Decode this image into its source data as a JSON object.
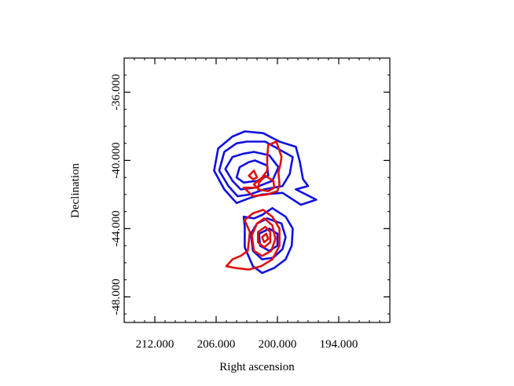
{
  "chart_data": {
    "type": "contour",
    "title": "",
    "xlabel": "Right ascension",
    "ylabel": "Declination",
    "xlim": [
      215.0,
      189.0
    ],
    "ylim": [
      -49.5,
      -34.0
    ],
    "xticks": [
      {
        "value": 212.0,
        "label": "212.000"
      },
      {
        "value": 206.0,
        "label": "206.000"
      },
      {
        "value": 200.0,
        "label": "200.000"
      },
      {
        "value": 194.0,
        "label": "194.000"
      }
    ],
    "yticks": [
      {
        "value": -36.0,
        "label": "-36.000"
      },
      {
        "value": -40.0,
        "label": "-40.000"
      },
      {
        "value": -44.0,
        "label": "-44.000"
      },
      {
        "value": -48.0,
        "label": "-48.000"
      }
    ],
    "grid": false,
    "series": [
      {
        "color": "#1010e0",
        "contours": [
          [
            [
              203.2,
              -38.3
            ],
            [
              201.4,
              -38.4
            ],
            [
              199.8,
              -38.9
            ],
            [
              198.2,
              -39.2
            ],
            [
              197.8,
              -40.1
            ],
            [
              197.5,
              -41.1
            ],
            [
              197.0,
              -41.5
            ],
            [
              198.2,
              -41.7
            ],
            [
              196.2,
              -42.3
            ],
            [
              197.7,
              -42.6
            ],
            [
              199.5,
              -41.9
            ],
            [
              201.5,
              -42.0
            ],
            [
              202.7,
              -42.2
            ],
            [
              204.0,
              -42.5
            ],
            [
              205.2,
              -41.7
            ],
            [
              206.2,
              -40.6
            ],
            [
              205.8,
              -39.3
            ],
            [
              204.4,
              -38.6
            ],
            [
              203.2,
              -38.3
            ]
          ],
          [
            [
              203.0,
              -38.9
            ],
            [
              201.2,
              -38.9
            ],
            [
              199.7,
              -39.4
            ],
            [
              198.5,
              -39.8
            ],
            [
              198.8,
              -40.8
            ],
            [
              199.5,
              -41.5
            ],
            [
              201.3,
              -41.7
            ],
            [
              202.7,
              -42.0
            ],
            [
              203.9,
              -42.1
            ],
            [
              204.8,
              -41.5
            ],
            [
              205.7,
              -40.6
            ],
            [
              205.2,
              -39.5
            ],
            [
              204.0,
              -39.0
            ],
            [
              203.0,
              -38.9
            ]
          ],
          [
            [
              202.3,
              -39.5
            ],
            [
              200.8,
              -39.7
            ],
            [
              199.9,
              -40.4
            ],
            [
              200.5,
              -41.2
            ],
            [
              202.2,
              -41.6
            ],
            [
              203.6,
              -41.7
            ],
            [
              204.4,
              -41.2
            ],
            [
              205.1,
              -40.5
            ],
            [
              204.4,
              -39.8
            ],
            [
              203.3,
              -39.6
            ],
            [
              202.3,
              -39.5
            ]
          ],
          [
            [
              202.2,
              -40.0
            ],
            [
              201.0,
              -40.3
            ],
            [
              200.9,
              -40.9
            ],
            [
              202.0,
              -41.2
            ],
            [
              203.3,
              -41.3
            ],
            [
              204.0,
              -41.0
            ],
            [
              203.7,
              -40.4
            ],
            [
              202.8,
              -40.1
            ],
            [
              202.2,
              -40.0
            ]
          ],
          [
            [
              200.5,
              -42.8
            ],
            [
              199.2,
              -43.3
            ],
            [
              198.5,
              -44.0
            ],
            [
              198.6,
              -45.0
            ],
            [
              199.2,
              -45.8
            ],
            [
              200.3,
              -46.3
            ],
            [
              201.5,
              -46.6
            ],
            [
              202.4,
              -46.2
            ],
            [
              203.2,
              -45.1
            ],
            [
              203.2,
              -43.9
            ],
            [
              203.3,
              -43.3
            ],
            [
              202.3,
              -43.4
            ],
            [
              201.5,
              -43.2
            ],
            [
              200.5,
              -42.8
            ]
          ],
          [
            [
              201.0,
              -43.4
            ],
            [
              199.6,
              -43.7
            ],
            [
              199.2,
              -44.5
            ],
            [
              199.5,
              -45.2
            ],
            [
              200.4,
              -45.7
            ],
            [
              201.5,
              -45.8
            ],
            [
              202.4,
              -45.3
            ],
            [
              202.6,
              -44.3
            ],
            [
              202.0,
              -43.7
            ],
            [
              201.0,
              -43.4
            ]
          ],
          [
            [
              200.8,
              -44.0
            ],
            [
              200.0,
              -44.3
            ],
            [
              200.0,
              -45.0
            ],
            [
              200.8,
              -45.3
            ],
            [
              201.7,
              -45.0
            ],
            [
              201.8,
              -44.3
            ],
            [
              200.8,
              -44.0
            ]
          ]
        ]
      },
      {
        "color": "#e01010",
        "contours": [
          [
            [
              200.1,
              -38.9
            ],
            [
              200.9,
              -39.1
            ],
            [
              201.0,
              -39.8
            ],
            [
              201.0,
              -40.6
            ],
            [
              201.5,
              -41.0
            ],
            [
              202.3,
              -41.4
            ],
            [
              202.0,
              -41.6
            ],
            [
              203.3,
              -41.6
            ],
            [
              202.4,
              -42.1
            ],
            [
              201.0,
              -42.0
            ],
            [
              200.0,
              -41.8
            ],
            [
              199.8,
              -41.4
            ],
            [
              199.9,
              -40.7
            ],
            [
              199.7,
              -40.2
            ],
            [
              199.6,
              -39.8
            ],
            [
              200.1,
              -38.9
            ]
          ],
          [
            [
              201.2,
              -40.9
            ],
            [
              200.4,
              -41.2
            ],
            [
              200.3,
              -41.6
            ],
            [
              200.9,
              -41.8
            ],
            [
              201.9,
              -41.7
            ],
            [
              201.8,
              -41.3
            ],
            [
              201.2,
              -40.9
            ]
          ],
          [
            [
              202.3,
              -40.6
            ],
            [
              202.0,
              -41.0
            ],
            [
              202.4,
              -41.1
            ],
            [
              202.8,
              -40.9
            ],
            [
              202.3,
              -40.6
            ]
          ],
          [
            [
              203.2,
              -43.5
            ],
            [
              202.7,
              -44.2
            ],
            [
              202.9,
              -45.3
            ],
            [
              203.6,
              -45.6
            ],
            [
              204.4,
              -45.8
            ],
            [
              205.0,
              -46.2
            ],
            [
              204.2,
              -46.3
            ],
            [
              202.8,
              -46.4
            ],
            [
              201.6,
              -46.2
            ],
            [
              200.5,
              -45.8
            ],
            [
              199.8,
              -45.0
            ],
            [
              199.8,
              -44.0
            ],
            [
              200.5,
              -43.3
            ],
            [
              201.4,
              -42.9
            ],
            [
              202.4,
              -43.1
            ],
            [
              203.2,
              -43.5
            ]
          ],
          [
            [
              201.3,
              -43.4
            ],
            [
              200.5,
              -43.8
            ],
            [
              200.2,
              -44.6
            ],
            [
              200.6,
              -45.3
            ],
            [
              201.5,
              -45.6
            ],
            [
              202.3,
              -45.3
            ],
            [
              202.5,
              -44.4
            ],
            [
              202.0,
              -43.7
            ],
            [
              201.3,
              -43.4
            ]
          ],
          [
            [
              201.2,
              -43.9
            ],
            [
              200.7,
              -44.2
            ],
            [
              200.7,
              -44.8
            ],
            [
              201.3,
              -45.1
            ],
            [
              201.9,
              -44.8
            ],
            [
              201.9,
              -44.2
            ],
            [
              201.2,
              -43.9
            ]
          ],
          [
            [
              201.1,
              -44.3
            ],
            [
              200.9,
              -44.6
            ],
            [
              201.3,
              -44.8
            ],
            [
              201.5,
              -44.5
            ],
            [
              201.1,
              -44.3
            ]
          ]
        ]
      }
    ]
  }
}
